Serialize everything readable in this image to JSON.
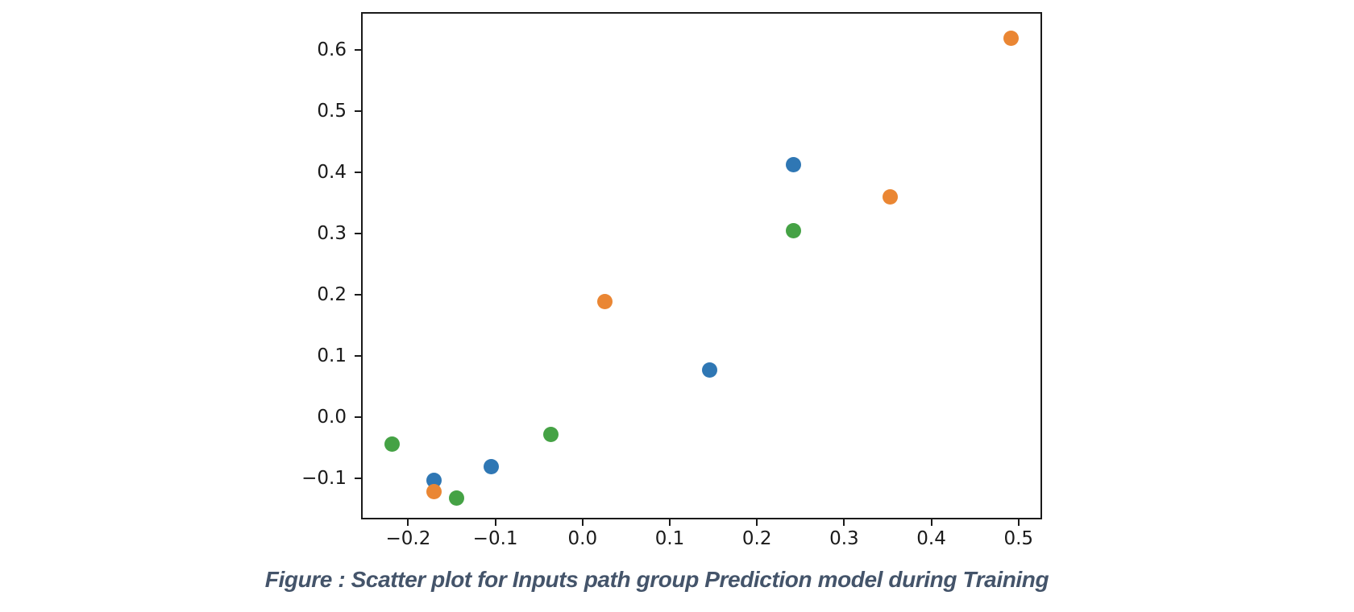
{
  "figure": {
    "caption": "Figure : Scatter plot for Inputs path group Prediction model during Training",
    "caption_color": "#44546a",
    "background_color": "#ffffff",
    "axis_color": "#1a1a1a"
  },
  "chart_data": {
    "type": "scatter",
    "title": "",
    "xlabel": "",
    "ylabel": "",
    "grid": false,
    "legend": "none",
    "marker_size_px": 19,
    "xlim": [
      -0.254,
      0.527
    ],
    "ylim": [
      -0.167,
      0.662
    ],
    "x_ticks": [
      -0.2,
      -0.1,
      0.0,
      0.1,
      0.2,
      0.3,
      0.4,
      0.5
    ],
    "y_ticks": [
      -0.1,
      0.0,
      0.1,
      0.2,
      0.3,
      0.4,
      0.5,
      0.6
    ],
    "series": [
      {
        "name": "blue",
        "color": "#2f77b4",
        "points": [
          [
            -0.172,
            -0.1
          ],
          [
            -0.107,
            -0.078
          ],
          [
            0.144,
            0.08
          ],
          [
            0.24,
            0.415
          ]
        ]
      },
      {
        "name": "orange",
        "color": "#ea8633",
        "points": [
          [
            -0.172,
            -0.119
          ],
          [
            0.024,
            0.192
          ],
          [
            0.351,
            0.362
          ],
          [
            0.49,
            0.622
          ]
        ]
      },
      {
        "name": "green",
        "color": "#45a245",
        "points": [
          [
            -0.22,
            -0.041
          ],
          [
            -0.146,
            -0.13
          ],
          [
            -0.038,
            -0.026
          ],
          [
            0.24,
            0.307
          ]
        ]
      }
    ]
  }
}
